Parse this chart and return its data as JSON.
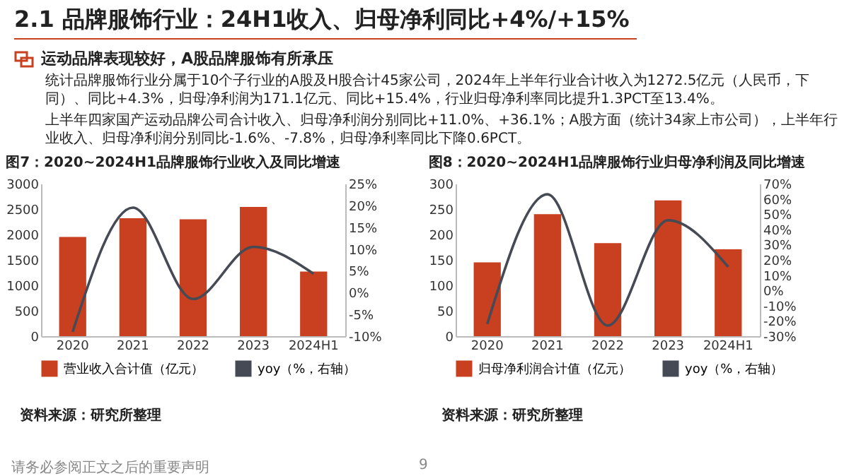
{
  "chart_data": [
    {
      "type": "other",
      "title": "2.1 品牌服饰行业：24H1收入、归母净利同比+4%/+15%",
      "subtitle": "运动品牌表现较好，A股品牌服饰有所承压",
      "annotations": [
        "统计品牌服饰行业分属于10个子行业的A股及H股合计45家公司，2024年上半年行业合计收入为1272.5亿元（人民币，下同）、同比+4.3%，归母净利润为171.1亿元、同比+15.4%，行业归母净利率同比提升1.3PCT至13.4%。",
        "上半年四家国产运动品牌公司合计收入、归母净利润分别同比+11.0%、+36.1%；A股方面（统计34家上市公司），上半年行业收入、归母净利润分别同比-1.6%、-7.8%，归母净利率同比下降0.6PCT。",
        "请务必参阅正文之后的重要声明",
        "9"
      ]
    },
    {
      "type": "bar",
      "title": "图7：2020~2024H1品牌服饰行业收入及同比增速",
      "categories": [
        "2020",
        "2021",
        "2022",
        "2023",
        "2024H1"
      ],
      "series": [
        {
          "name": "营业收入合计值（亿元）",
          "type": "bar",
          "color": "#c8401f",
          "values": [
            1950,
            2320,
            2300,
            2540,
            1270
          ]
        },
        {
          "name": "yoy（%，右轴）",
          "type": "line",
          "axis": "y2",
          "color": "#454a55",
          "values": [
            -9,
            19.5,
            -1.5,
            10.5,
            4.3
          ]
        }
      ],
      "ylim": [
        0,
        3000
      ],
      "yticks": [
        0,
        500,
        1000,
        1500,
        2000,
        2500,
        3000
      ],
      "y2lim": [
        -10,
        25
      ],
      "y2ticks": [
        {
          "value": -10,
          "label": "-10%"
        },
        {
          "value": -5,
          "label": "-5%"
        },
        {
          "value": 0,
          "label": "0%"
        },
        {
          "value": 5,
          "label": "5%"
        },
        {
          "value": 10,
          "label": "10%"
        },
        {
          "value": 15,
          "label": "15%"
        },
        {
          "value": 20,
          "label": "20%"
        },
        {
          "value": 25,
          "label": "25%"
        }
      ],
      "legend": "bottom",
      "annotations": [
        "资料来源：研究所整理"
      ]
    },
    {
      "type": "bar",
      "title": "图8：2020~2024H1品牌服饰行业归母净利润及同比增速",
      "categories": [
        "2020",
        "2021",
        "2022",
        "2023",
        "2024H1"
      ],
      "series": [
        {
          "name": "归母净利润合计值（亿元）",
          "type": "bar",
          "color": "#c8401f",
          "values": [
            145,
            240,
            183,
            267,
            171
          ]
        },
        {
          "name": "yoy（%，右轴）",
          "type": "line",
          "axis": "y2",
          "color": "#454a55",
          "values": [
            -22,
            63,
            -23,
            46,
            15.4
          ]
        }
      ],
      "ylim": [
        0,
        300
      ],
      "yticks": [
        0,
        50,
        100,
        150,
        200,
        250,
        300
      ],
      "y2lim": [
        -30,
        70
      ],
      "y2ticks": [
        {
          "value": -30,
          "label": "-30%"
        },
        {
          "value": -20,
          "label": "-20%"
        },
        {
          "value": -10,
          "label": "-10%"
        },
        {
          "value": 0,
          "label": "0%"
        },
        {
          "value": 10,
          "label": "10%"
        },
        {
          "value": 20,
          "label": "20%"
        },
        {
          "value": 30,
          "label": "30%"
        },
        {
          "value": 40,
          "label": "40%"
        },
        {
          "value": 50,
          "label": "50%"
        },
        {
          "value": 60,
          "label": "60%"
        },
        {
          "value": 70,
          "label": "70%"
        }
      ],
      "legend": "bottom",
      "annotations": [
        "资料来源：研究所整理"
      ]
    }
  ]
}
